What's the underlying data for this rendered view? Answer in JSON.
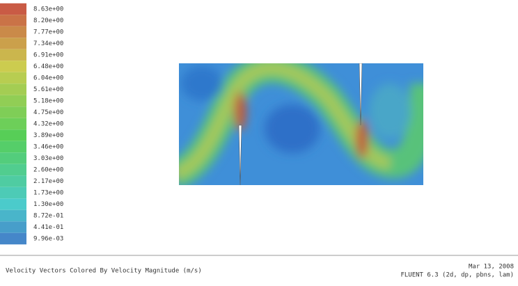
{
  "legend": {
    "labels": [
      "8.63e+00",
      "8.20e+00",
      "7.77e+00",
      "7.34e+00",
      "6.91e+00",
      "6.48e+00",
      "6.04e+00",
      "5.61e+00",
      "5.18e+00",
      "4.75e+00",
      "4.32e+00",
      "3.89e+00",
      "3.46e+00",
      "3.03e+00",
      "2.60e+00",
      "2.17e+00",
      "1.73e+00",
      "1.30e+00",
      "8.72e-01",
      "4.41e-01",
      "9.96e-03"
    ]
  },
  "caption": {
    "title": "Velocity Vectors Colored By Velocity Magnitude (m/s)",
    "date": "Mar 13, 2008",
    "solver": "FLUENT 6.3 (2d, dp, pbns, lam)"
  }
}
